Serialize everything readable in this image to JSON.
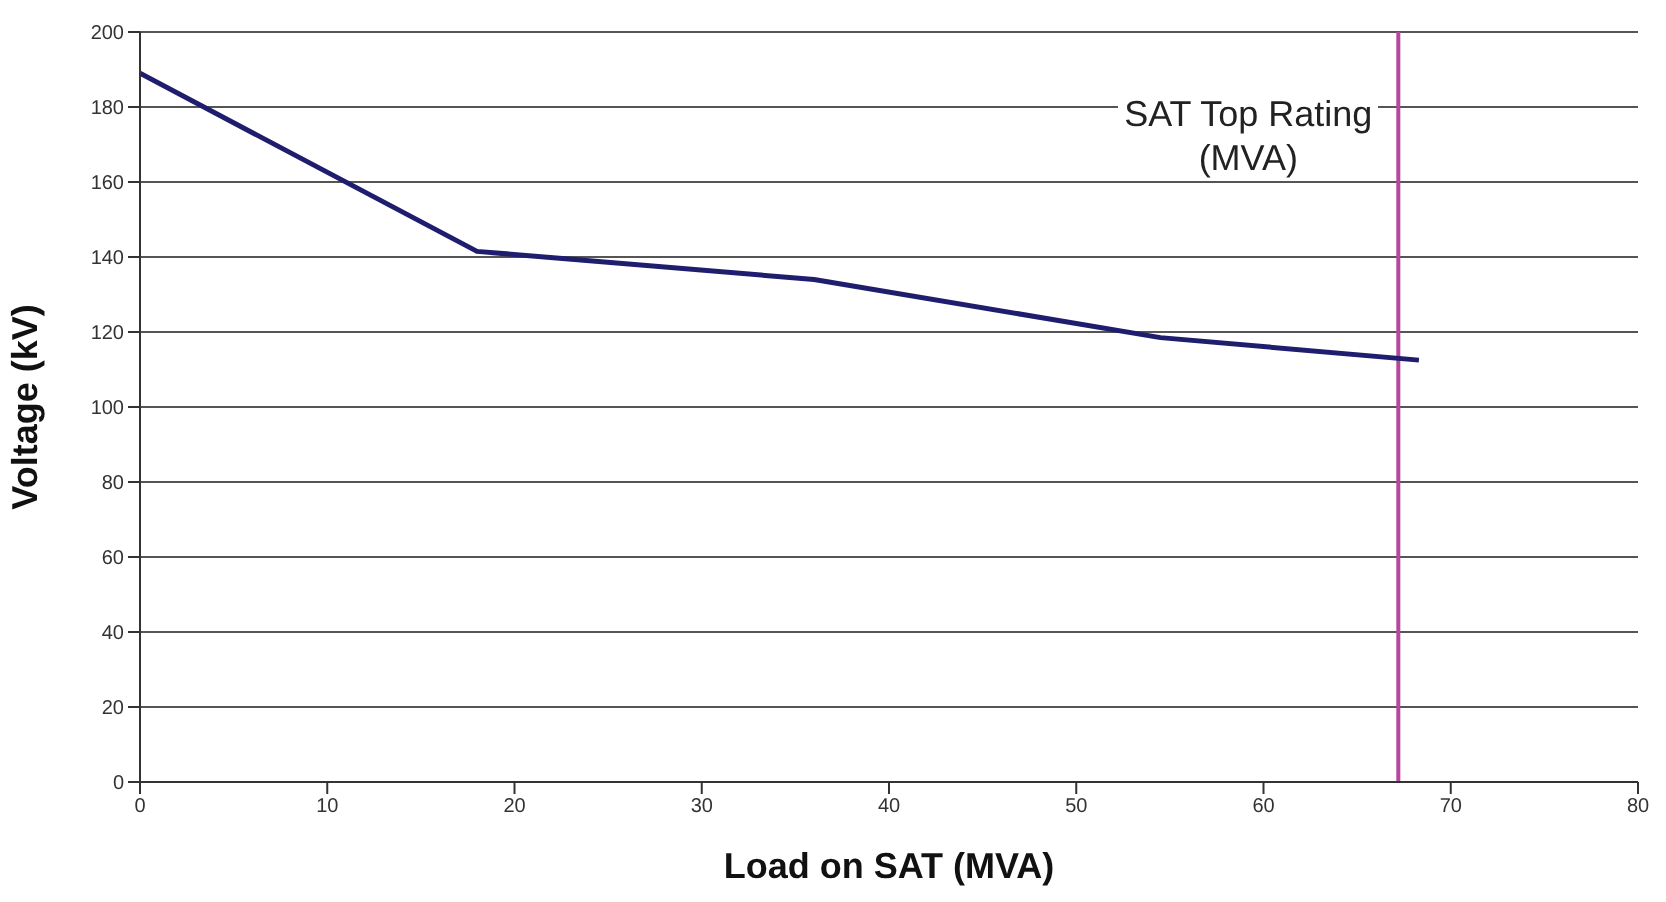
{
  "chart_data": {
    "type": "line",
    "xlabel": "Load on SAT (MVA)",
    "ylabel": "Voltage (kV)",
    "x": [
      0,
      18,
      36,
      54.5,
      68.3
    ],
    "series": [
      {
        "color": "#1f1d6e",
        "values": [
          189,
          141.5,
          134,
          118.5,
          112.5
        ]
      }
    ],
    "xlim": [
      0,
      80
    ],
    "xticks": [
      0,
      10,
      20,
      30,
      40,
      50,
      60,
      70,
      80
    ],
    "ylim": [
      0,
      200
    ],
    "yticks": [
      0,
      20,
      40,
      60,
      80,
      100,
      120,
      140,
      160,
      180,
      200
    ],
    "grid": "y",
    "legend": false,
    "marker": "none",
    "line_style": "solid",
    "ref_lines": [
      {
        "axis": "x",
        "value": 67.2,
        "label": "SAT Top Rating (MVA)",
        "color": "#b8459f"
      }
    ]
  }
}
